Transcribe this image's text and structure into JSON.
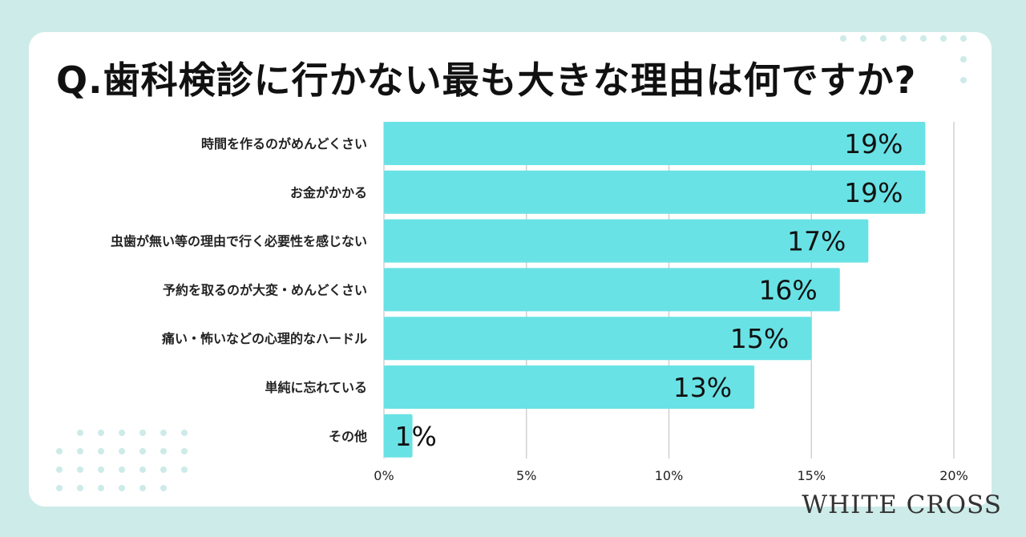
{
  "title": "Q.歯科検診に行かない最も大きな理由は何ですか?",
  "brand": "WHITE CROSS",
  "colors": {
    "bar": "#69e2e5",
    "background": "#cdebe8",
    "card": "#ffffff",
    "grid": "#d0d0d0",
    "dot": "#cdebe8"
  },
  "chart_data": {
    "type": "bar",
    "orientation": "horizontal",
    "categories": [
      "時間を作るのがめんどくさい",
      "お金がかかる",
      "虫歯が無い等の理由で行く必要性を感じない",
      "予約を取るのが大変・めんどくさい",
      "痛い・怖いなどの心理的なハードル",
      "単純に忘れている",
      "その他"
    ],
    "values": [
      19,
      19,
      17,
      16,
      15,
      13,
      1
    ],
    "value_labels": [
      "19%",
      "19%",
      "17%",
      "16%",
      "15%",
      "13%",
      "1%"
    ],
    "xlim": [
      0,
      20
    ],
    "x_ticks": [
      0,
      5,
      10,
      15,
      20
    ],
    "x_tick_labels": [
      "0%",
      "5%",
      "10%",
      "15%",
      "20%"
    ],
    "grid": true,
    "legend": "none"
  }
}
